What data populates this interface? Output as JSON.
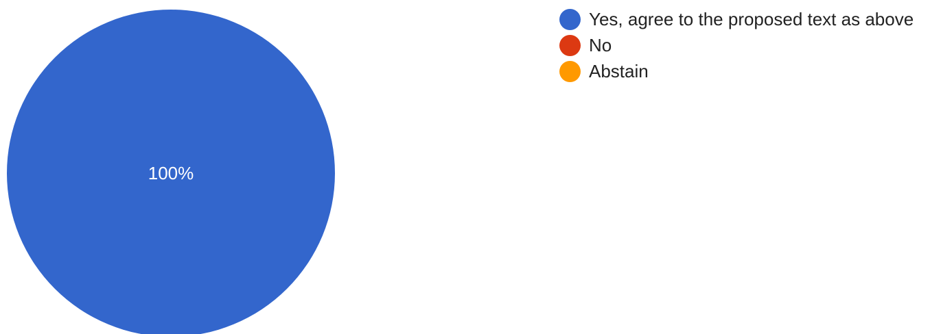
{
  "chart_data": {
    "type": "pie",
    "slices": [
      {
        "label": "Yes, agree to the proposed text as above",
        "value": 100,
        "color": "#3366cc"
      },
      {
        "label": "No",
        "value": 0,
        "color": "#dc3912"
      },
      {
        "label": "Abstain",
        "value": 0,
        "color": "#ff9900"
      }
    ],
    "data_labels": [
      "100%",
      "",
      ""
    ],
    "legend_position": "right"
  }
}
